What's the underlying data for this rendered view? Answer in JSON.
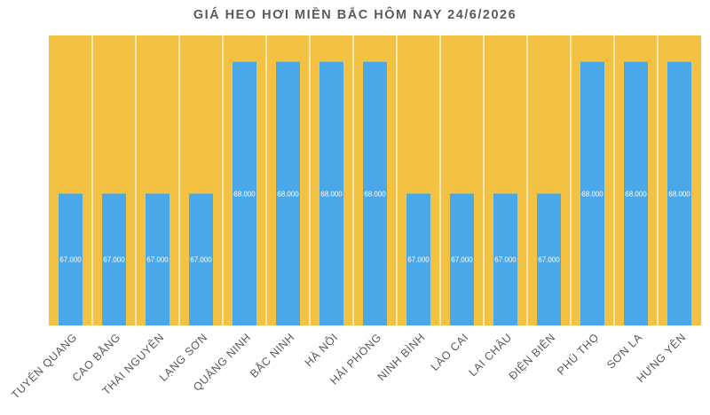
{
  "chart_data": {
    "type": "bar",
    "title": "GIÁ HEO HƠI MIỀN BẮC HÔM NAY 24/6/2026",
    "xlabel": "",
    "ylabel": "",
    "ylim": [
      66000,
      68200
    ],
    "grid": false,
    "legend": "none",
    "categories": [
      "TUYÊN QUANG",
      "CAO BẰNG",
      "THÁI NGUYÊN",
      "LẠNG SƠN",
      "QUẢNG NINH",
      "BẮC NINH",
      "HÀ NỘI",
      "HẢI PHÒNG",
      "NINH BÌNH",
      "LÀO CAI",
      "LAI CHÂU",
      "ĐIỆN BIÊN",
      "PHÚ THỌ",
      "SƠN LA",
      "HƯNG YÊN"
    ],
    "values": [
      67000,
      67000,
      67000,
      67000,
      68000,
      68000,
      68000,
      68000,
      67000,
      67000,
      67000,
      67000,
      68000,
      68000,
      68000
    ],
    "data_labels": [
      "67.000",
      "67.000",
      "67.000",
      "67.000",
      "68.000",
      "68.000",
      "68.000",
      "68.000",
      "67.000",
      "67.000",
      "67.000",
      "67.000",
      "68.000",
      "68.000",
      "68.000"
    ],
    "colors": {
      "background": "#f4c242",
      "bar": "#4aa8e8",
      "separator": "#ffffff",
      "label": "#ffffff",
      "axis_text": "#595959"
    }
  }
}
